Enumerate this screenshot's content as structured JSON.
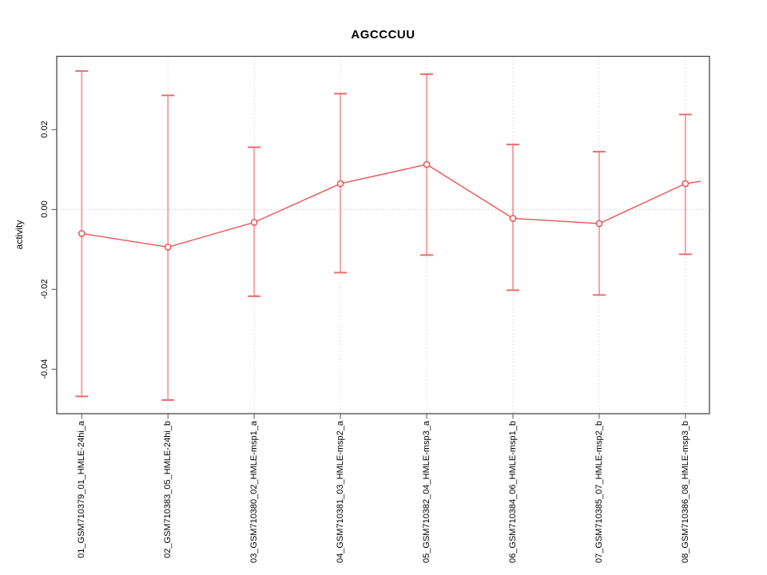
{
  "chart_data": {
    "type": "line",
    "title": "AGCCCUU",
    "ylabel": "activity",
    "xlabel": "",
    "marker": "open-circle",
    "legend": null,
    "grid": {
      "vertical_dotted_at_each_category": true,
      "horizontal_dotted_at_zero": true
    },
    "ylim": [
      -0.051,
      0.0385
    ],
    "y_ticks": [
      {
        "value": 0.02,
        "label": "0.02"
      },
      {
        "value": 0.0,
        "label": "0.00"
      },
      {
        "value": -0.02,
        "label": "-0.02"
      },
      {
        "value": -0.04,
        "label": "-0.04"
      }
    ],
    "categories": [
      "01_GSM710379_01_HMLE-24hi_a",
      "02_GSM710383_05_HMLE-24hi_b",
      "03_GSM710380_02_HMLE-msp1_a",
      "04_GSM710381_03_HMLE-msp2_a",
      "05_GSM710382_04_HMLE-msp3_a",
      "06_GSM710384_06_HMLE-msp1_b",
      "07_GSM710385_07_HMLE-msp2_b",
      "08_GSM710386_08_HMLE-msp3_b"
    ],
    "series": [
      {
        "name": "activity",
        "values": [
          -0.006,
          -0.0094,
          -0.0032,
          0.0065,
          0.0113,
          -0.0022,
          -0.0035,
          0.0065
        ],
        "error_upper": [
          0.0347,
          0.0286,
          0.0156,
          0.029,
          0.0339,
          0.0163,
          0.0145,
          0.0238
        ],
        "error_lower": [
          -0.0468,
          -0.0477,
          -0.0217,
          -0.0158,
          -0.0114,
          -0.0202,
          -0.0214,
          -0.0112
        ]
      }
    ],
    "colors": {
      "line": "#ec5353",
      "marker": "#e94b4b",
      "marker_fill": "#ffffff",
      "error_bar": "#f5a3a3",
      "error_cap": "#ea6d6d",
      "grid": "#dcdcdc",
      "zero_line": "#d6d6d6",
      "box": "#3a3a3a",
      "tick": "#6e6e6e",
      "text": "#000000",
      "background": "#ffffff"
    }
  }
}
